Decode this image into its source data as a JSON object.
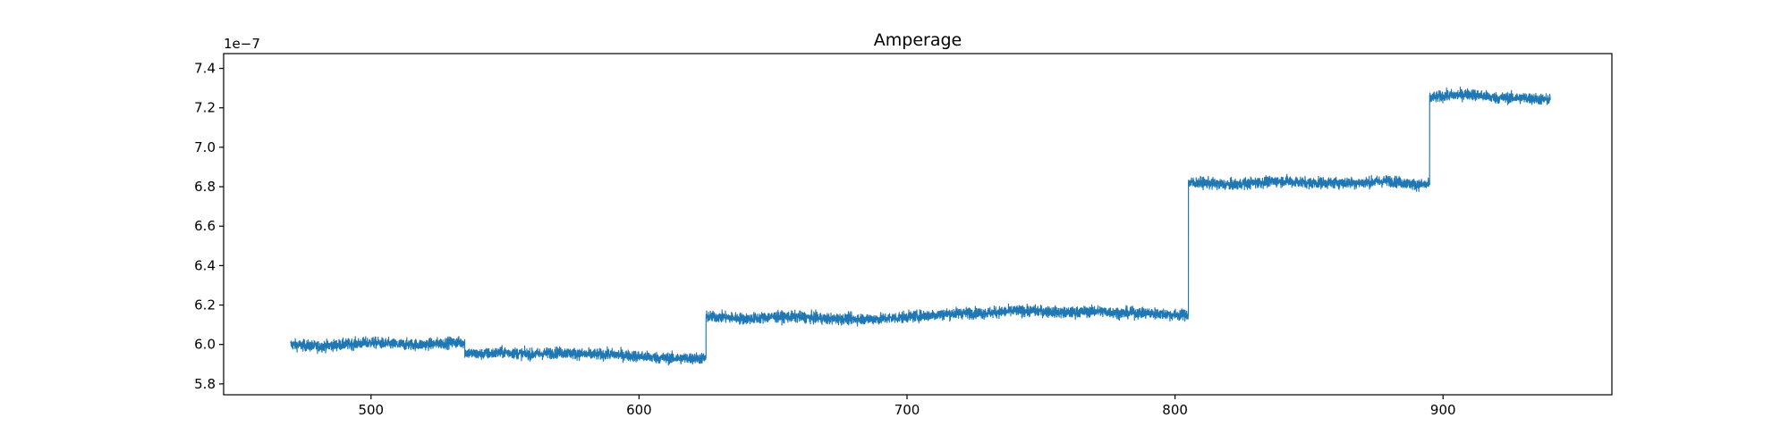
{
  "chart_data": {
    "type": "line",
    "title": "Amperage",
    "xlabel": "",
    "ylabel": "",
    "y_offset_label": "1e−7",
    "xlim": [
      445,
      963
    ],
    "ylim": [
      5.745,
      7.475
    ],
    "xticks": [
      500,
      600,
      700,
      800,
      900
    ],
    "xtick_labels": [
      "500",
      "600",
      "700",
      "800",
      "900"
    ],
    "yticks": [
      5.8,
      6.0,
      6.2,
      6.4,
      6.6,
      6.8,
      7.0,
      7.2,
      7.4
    ],
    "ytick_labels": [
      "5.8",
      "6.0",
      "6.2",
      "6.4",
      "6.6",
      "6.8",
      "7.0",
      "7.2",
      "7.4"
    ],
    "grid": false,
    "color": "#1f77b4",
    "series": [
      {
        "x": [
          470,
          480,
          490,
          500,
          510,
          520,
          530,
          535,
          540,
          550,
          560,
          570,
          580,
          590,
          600,
          610,
          620,
          625,
          630,
          640,
          650,
          660,
          670,
          680,
          690,
          700,
          710,
          720,
          730,
          740,
          750,
          760,
          770,
          780,
          790,
          800,
          805,
          810,
          820,
          830,
          840,
          850,
          860,
          870,
          880,
          890,
          895,
          900,
          910,
          920,
          930,
          940
        ],
        "y": [
          6.0,
          5.99,
          6.0,
          6.01,
          6.0,
          6.0,
          6.01,
          5.96,
          5.95,
          5.96,
          5.95,
          5.96,
          5.95,
          5.95,
          5.94,
          5.93,
          5.93,
          6.14,
          6.14,
          6.13,
          6.14,
          6.14,
          6.13,
          6.13,
          6.13,
          6.14,
          6.15,
          6.16,
          6.16,
          6.17,
          6.17,
          6.16,
          6.17,
          6.16,
          6.16,
          6.15,
          6.82,
          6.82,
          6.81,
          6.82,
          6.83,
          6.82,
          6.82,
          6.82,
          6.83,
          6.81,
          7.25,
          7.26,
          7.27,
          7.25,
          7.25,
          7.24
        ],
        "noise_band": 0.025
      }
    ]
  }
}
